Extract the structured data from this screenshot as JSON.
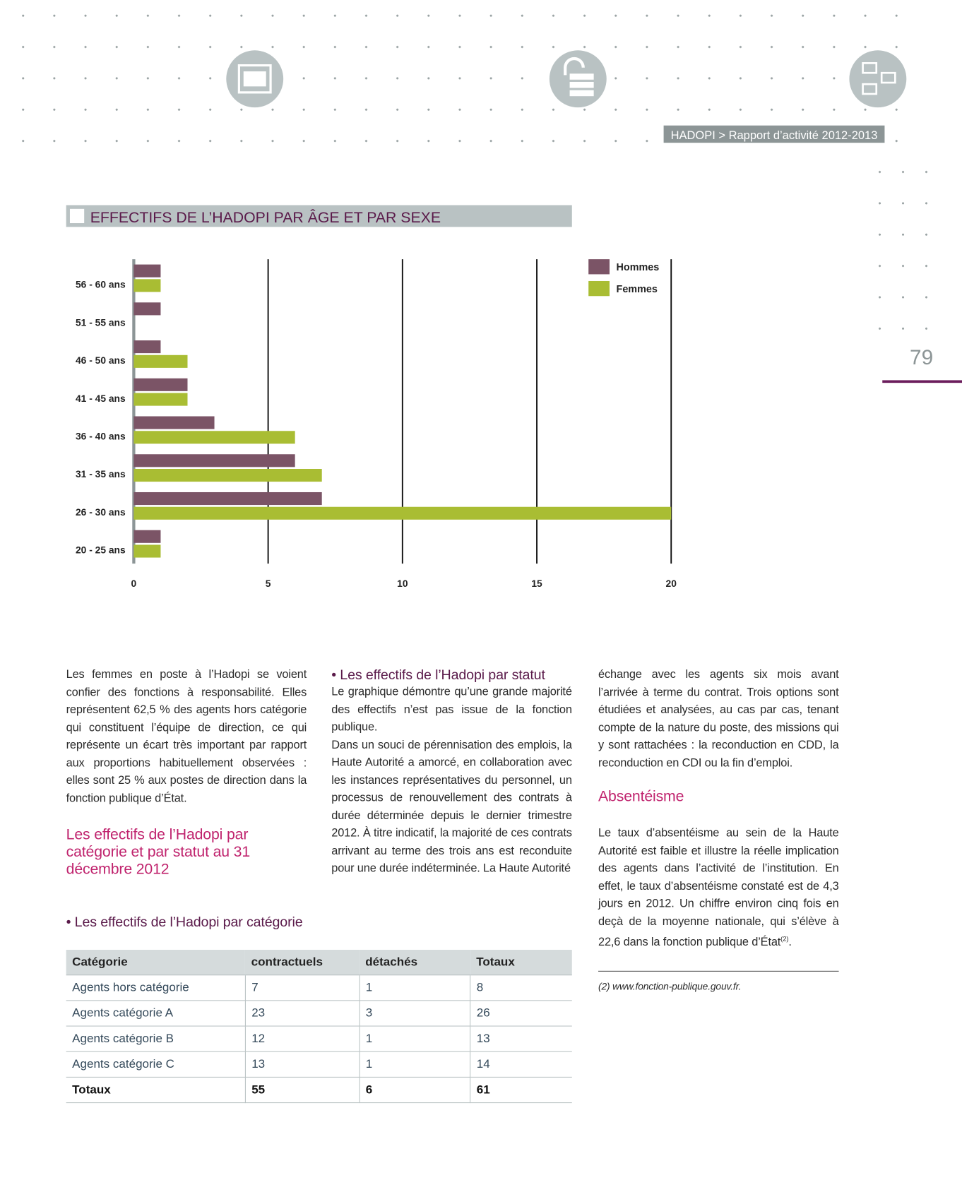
{
  "header": {
    "running_title": "HADOPI > Rapport d’activité 2012-2013",
    "page_number": "79"
  },
  "chart_data": {
    "type": "bar",
    "orientation": "horizontal",
    "title": "EFFECTIFS DE L’HADOPI PAR ÂGE ET PAR SEXE",
    "categories": [
      "56 - 60 ans",
      "51 - 55 ans",
      "46 - 50 ans",
      "41 - 45 ans",
      "36 - 40 ans",
      "31 - 35 ans",
      "26 - 30 ans",
      "20 - 25 ans"
    ],
    "series": [
      {
        "name": "Hommes",
        "color": "#7b5466",
        "values": [
          1,
          1,
          1,
          2,
          3,
          6,
          7,
          1
        ]
      },
      {
        "name": "Femmes",
        "color": "#a9bd33",
        "values": [
          1,
          0,
          2,
          2,
          6,
          7,
          20,
          1
        ]
      }
    ],
    "xlim": [
      0,
      20
    ],
    "xticks": [
      0,
      5,
      10,
      15,
      20
    ],
    "grid": true,
    "legend": "top-right"
  },
  "body": {
    "col1_paragraph": "Les femmes en poste à l’Hadopi se voient confier des fonctions à responsabilité. Elles représentent 62,5 % des agents hors catégorie qui constituent l’équipe de direction, ce qui représente un écart très important par rapport aux proportions habituellement observées : elles sont 25 % aux postes de direction dans la fonction publique d’État.",
    "heading_categorie_statut": "Les effectifs de l’Hadopi par catégorie et par statut au 31 décembre 2012",
    "subheading_statut": "• Les effectifs de l’Hadopi par statut",
    "statut_paragraphs": [
      "Le graphique démontre qu’une grande majorité des effectifs n’est pas issue de la fonction publique.",
      "Dans un souci de pérennisation des emplois, la Haute Autorité a amorcé, en collaboration avec les instances représentatives du personnel, un processus de renouvellement des contrats à durée déterminée depuis le dernier trimestre 2012. À titre indicatif, la majorité de ces contrats arrivant au terme des trois ans est reconduite pour une durée indéterminée. La Haute Autorité"
    ],
    "col3_paragraph": "échange avec les agents six mois avant l’arrivée à terme du contrat. Trois options sont étudiées et analysées, au cas par cas, tenant compte de la nature du poste, des missions qui y sont rattachées : la reconduction en CDD, la reconduction en CDI ou la fin d’emploi.",
    "heading_absenteisme": "Absentéisme",
    "absenteisme_paragraph": "Le taux d’absentéisme au sein de la Haute Autorité est faible et illustre la réelle implication des agents dans l’activité de l’institution. En effet, le taux d’absentéisme constaté est de 4,3 jours en 2012. Un chiffre environ cinq fois en deçà de la moyenne nationale, qui s’élève à 22,6 dans la fonction publique d’État",
    "absenteisme_note_ref": "(2)",
    "absenteisme_end": ".",
    "footnote": "(2) www.fonction-publique.gouv.fr.",
    "subheading_categorie": "• Les effectifs de l’Hadopi par catégorie",
    "table": {
      "columns": [
        "Catégorie",
        "contractuels",
        "détachés",
        "Totaux"
      ],
      "rows": [
        [
          "Agents hors catégorie",
          7,
          1,
          8
        ],
        [
          "Agents catégorie A",
          23,
          3,
          26
        ],
        [
          "Agents catégorie B",
          12,
          1,
          13
        ],
        [
          "Agents catégorie C",
          13,
          1,
          14
        ],
        [
          "Totaux",
          55,
          6,
          61
        ]
      ]
    }
  }
}
